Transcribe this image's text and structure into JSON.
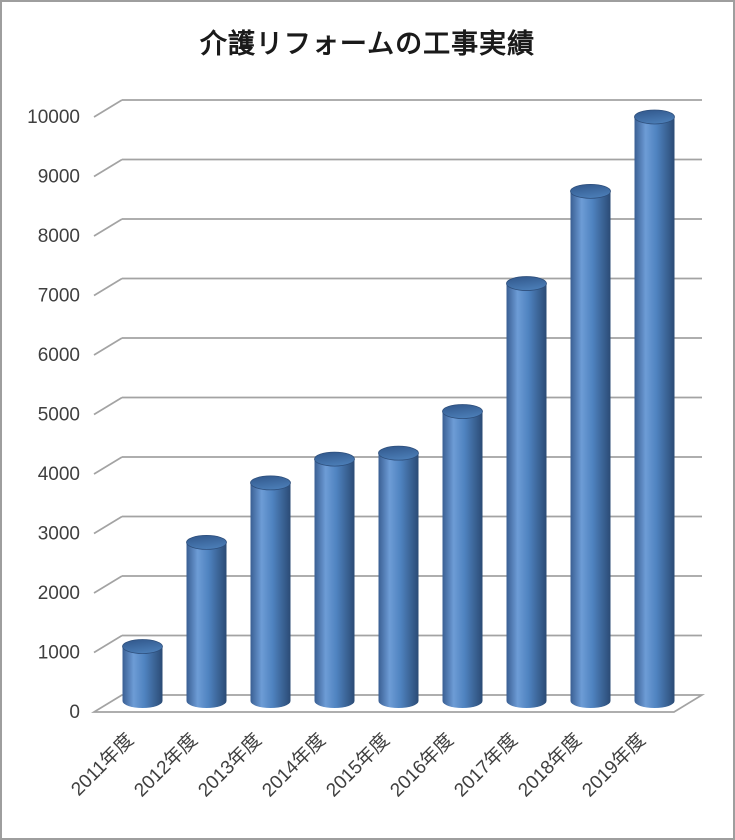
{
  "frame": {
    "background": "#ffffff",
    "border_color": "#9e9e9e"
  },
  "chart_data": {
    "type": "bar",
    "style": "3d-cylinder",
    "title": "介護リフォームの工事実績",
    "xlabel": "",
    "ylabel": "",
    "categories": [
      "2011年度",
      "2012年度",
      "2013年度",
      "2014年度",
      "2015年度",
      "2016年度",
      "2017年度",
      "2018年度",
      "2019年度"
    ],
    "values": [
      1050,
      2800,
      3800,
      4200,
      4300,
      5000,
      7150,
      8700,
      9950
    ],
    "ylim": [
      0,
      10000
    ],
    "ytick_interval": 1000,
    "yticks": [
      0,
      1000,
      2000,
      3000,
      4000,
      5000,
      6000,
      7000,
      8000,
      9000,
      10000
    ],
    "ytick_labels": [
      "0",
      "1000",
      "2000",
      "3000",
      "4000",
      "5000",
      "6000",
      "7000",
      "8000",
      "9000",
      "10000"
    ],
    "grid": true,
    "legend_position": "none",
    "colors": {
      "title": "#1a1a1a",
      "axis_label": "#3f3f3f",
      "gridline": "#a3a3a3",
      "bar_edge_dark_left": "#3a5f93",
      "bar_body_light": "#6d9cd6",
      "bar_body_mid": "#4f83c0",
      "bar_edge_dark_right": "#2b4b75",
      "bar_top_dark": "#30568a",
      "bar_top_light": "#4a7cb5",
      "bar_rim_stroke": "#2e4f7c"
    }
  }
}
